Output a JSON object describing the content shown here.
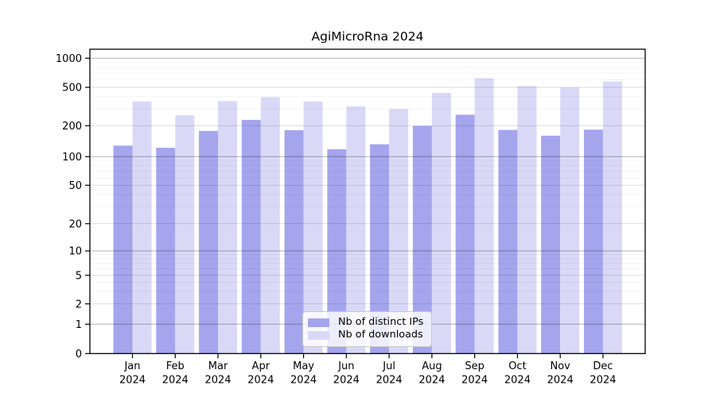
{
  "chart_data": {
    "type": "bar",
    "title": "AgiMicroRna 2024",
    "categories": [
      "Jan",
      "Feb",
      "Mar",
      "Apr",
      "May",
      "Jun",
      "Jul",
      "Aug",
      "Sep",
      "Oct",
      "Nov",
      "Dec"
    ],
    "category_year": "2024",
    "series": [
      {
        "name": "Nb of distinct IPs",
        "color": "#a5a5ee",
        "values": [
          128,
          122,
          178,
          230,
          181,
          118,
          132,
          199,
          260,
          182,
          160,
          183
        ]
      },
      {
        "name": "Nb of downloads",
        "color": "#d9d9f7",
        "values": [
          357,
          256,
          360,
          396,
          357,
          317,
          298,
          437,
          622,
          515,
          498,
          574
        ]
      }
    ],
    "yticks": [
      0,
      1,
      2,
      5,
      10,
      20,
      50,
      100,
      200,
      500,
      1000
    ],
    "yscale": "log-like",
    "ylim": [
      0,
      1250
    ],
    "grid": true,
    "legend_position": "lower center",
    "background": "#ffffff"
  }
}
